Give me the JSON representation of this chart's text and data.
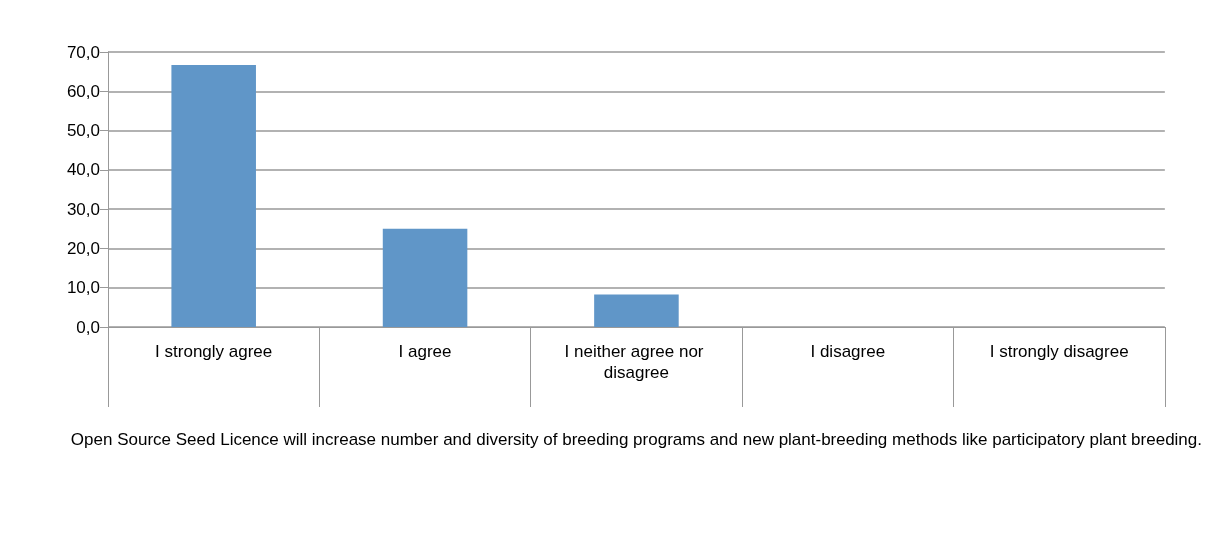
{
  "chart_data": {
    "type": "bar",
    "categories": [
      "I strongly agree",
      "I agree",
      "I neither agree nor disagree",
      "I disagree",
      "I strongly disagree"
    ],
    "values": [
      66.7,
      25.0,
      8.3,
      0,
      0
    ],
    "color": "#6096c8",
    "xlabel": "Open Source Seed Licence will increase number and diversity of breeding programs and new plant-breeding methods like participatory plant breeding.",
    "ylim": [
      0,
      70
    ],
    "yticks": [
      {
        "value": 0,
        "label": "0,0"
      },
      {
        "value": 10,
        "label": "10,0"
      },
      {
        "value": 20,
        "label": "20,0"
      },
      {
        "value": 30,
        "label": "30,0"
      },
      {
        "value": 40,
        "label": "40,0"
      },
      {
        "value": 50,
        "label": "50,0"
      },
      {
        "value": 60,
        "label": "60,0"
      },
      {
        "value": 70,
        "label": "70,0"
      }
    ],
    "grid": "y"
  }
}
